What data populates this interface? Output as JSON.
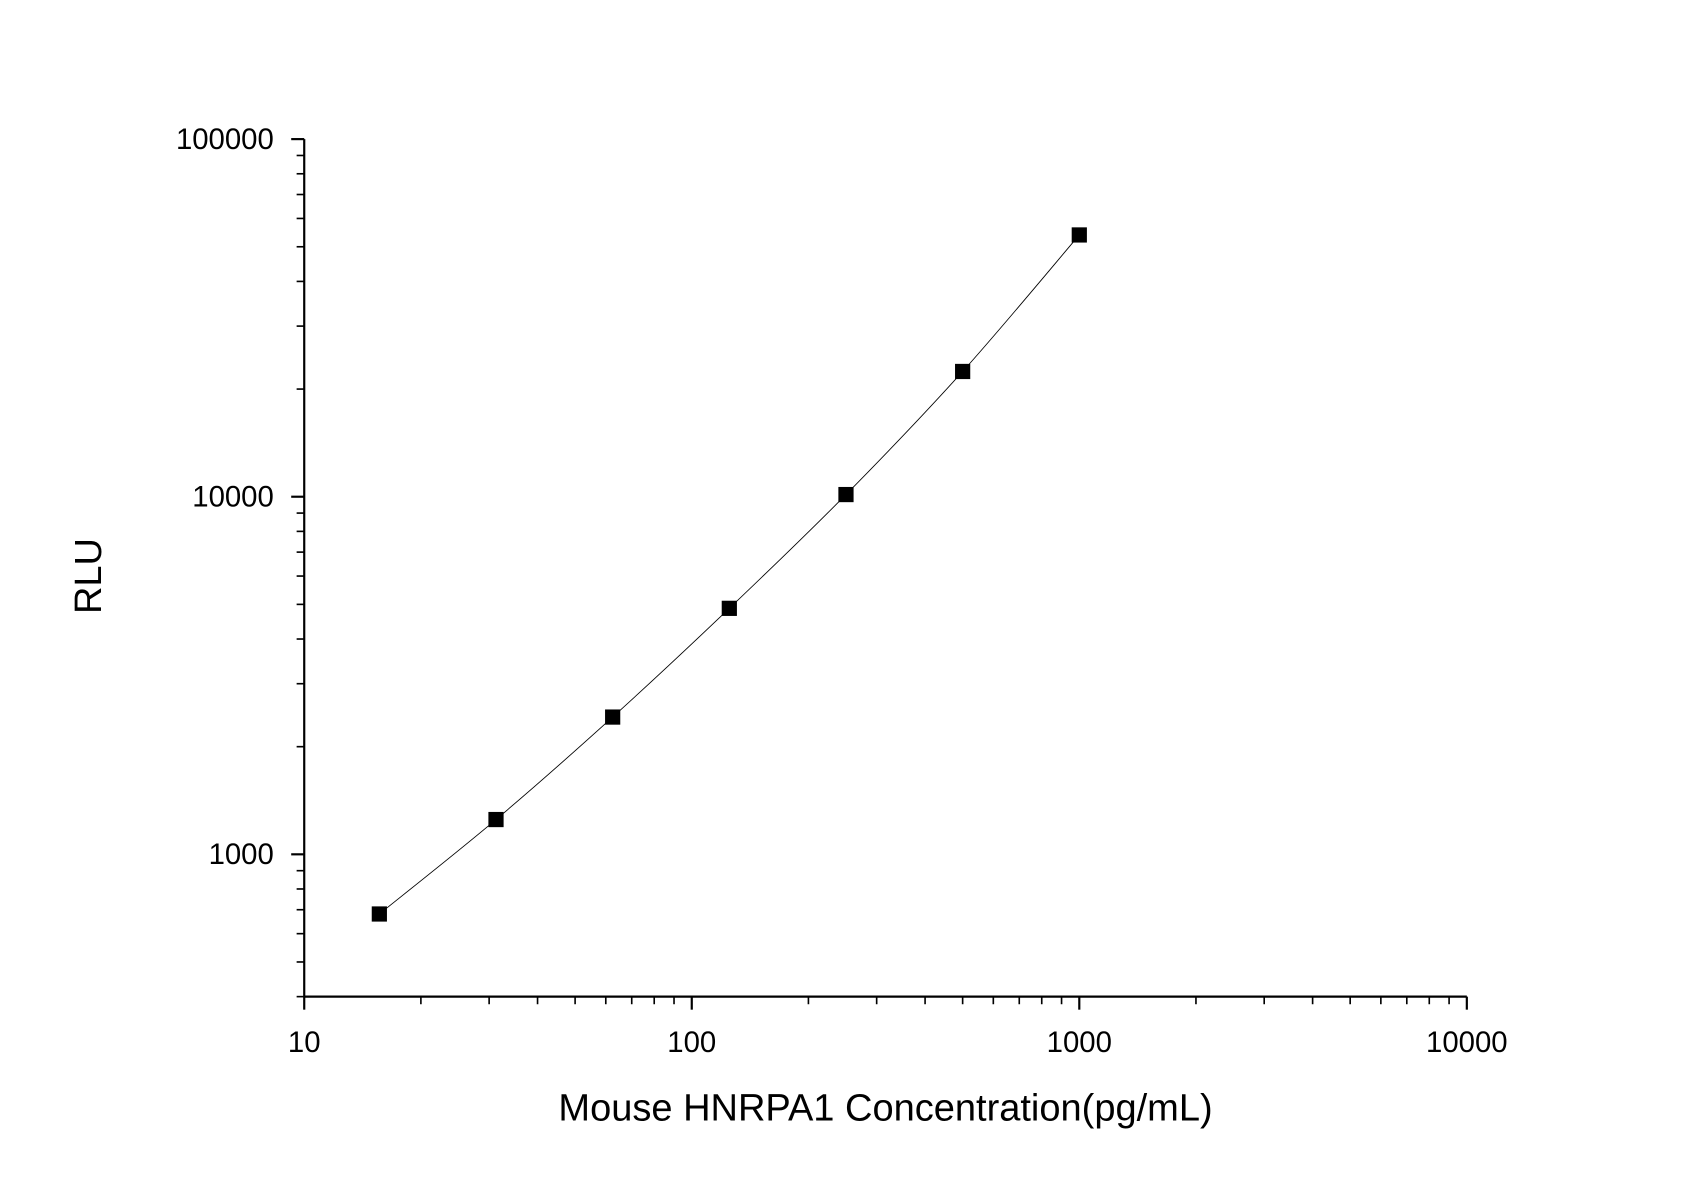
{
  "chart_data": {
    "type": "scatter",
    "title": "",
    "xlabel": "Mouse HNRPA1 Concentration(pg/mL)",
    "ylabel": "RLU",
    "xscale": "log",
    "yscale": "log",
    "xlim": [
      10,
      10000
    ],
    "ylim": [
      400,
      100000
    ],
    "xticks": [
      10,
      100,
      1000,
      10000
    ],
    "xtick_labels": [
      "10",
      "100",
      "1000",
      "10000"
    ],
    "yticks": [
      1000,
      10000,
      100000
    ],
    "ytick_labels": [
      "1000",
      "10000",
      "100000"
    ],
    "grid": false,
    "legend": "none",
    "marker": "square",
    "fit_line": true,
    "color": "#000000",
    "series": [
      {
        "x": [
          15.625,
          31.25,
          62.5,
          125,
          250,
          500,
          1000
        ],
        "y": [
          681,
          1251,
          2420,
          4874,
          10140,
          22400,
          53950
        ]
      }
    ]
  }
}
